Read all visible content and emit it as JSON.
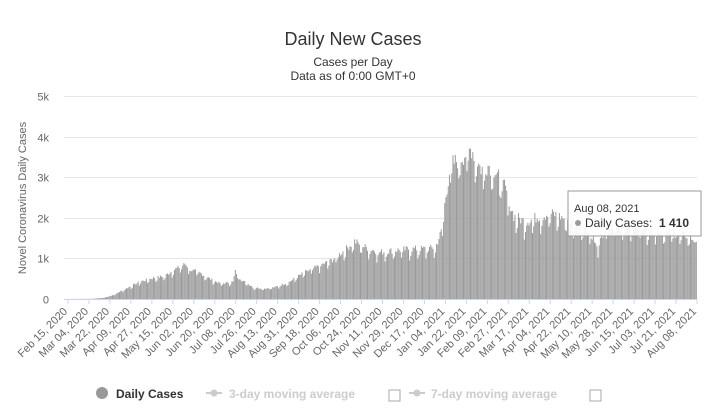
{
  "chart_data": {
    "type": "bar",
    "title": "Daily New Cases",
    "subtitle_line1": "Cases per Day",
    "subtitle_line2": "Data as of 0:00 GMT+0",
    "ylabel": "Novel Coronavirus Daily Cases",
    "ylim": [
      0,
      5000
    ],
    "yticks": [
      {
        "value": 0,
        "label": "0"
      },
      {
        "value": 1000,
        "label": "1k"
      },
      {
        "value": 2000,
        "label": "2k"
      },
      {
        "value": 3000,
        "label": "3k"
      },
      {
        "value": 4000,
        "label": "4k"
      },
      {
        "value": 5000,
        "label": "5k"
      }
    ],
    "xrange": [
      "2020-02-15",
      "2021-08-08"
    ],
    "xtick_labels": [
      "Feb 15, 2020",
      "Mar 04, 2020",
      "Mar 22, 2020",
      "Apr 09, 2020",
      "Apr 27, 2020",
      "May 15, 2020",
      "Jun 02, 2020",
      "Jun 20, 2020",
      "Jul 08, 2020",
      "Jul 26, 2020",
      "Aug 13, 2020",
      "Aug 31, 2020",
      "Sep 18, 2020",
      "Oct 06, 2020",
      "Oct 24, 2020",
      "Nov 11, 2020",
      "Nov 29, 2020",
      "Dec 17, 2020",
      "Jan 04, 2021",
      "Jan 22, 2021",
      "Feb 09, 2021",
      "Feb 27, 2021",
      "Mar 17, 2021",
      "Apr 04, 2021",
      "Apr 22, 2021",
      "May 10, 2021",
      "May 28, 2021",
      "Jun 15, 2021",
      "Jul 03, 2021",
      "Jul 21, 2021",
      "Aug 08, 2021"
    ],
    "series": [
      {
        "name": "Daily Cases",
        "color": "#999999",
        "anchors": [
          [
            "2020-02-15",
            0
          ],
          [
            "2020-03-10",
            5
          ],
          [
            "2020-03-20",
            30
          ],
          [
            "2020-03-28",
            100
          ],
          [
            "2020-04-05",
            220
          ],
          [
            "2020-04-20",
            430
          ],
          [
            "2020-05-01",
            520
          ],
          [
            "2020-05-10",
            560
          ],
          [
            "2020-05-20",
            740
          ],
          [
            "2020-05-28",
            860
          ],
          [
            "2020-06-02",
            720
          ],
          [
            "2020-06-10",
            640
          ],
          [
            "2020-06-20",
            470
          ],
          [
            "2020-06-28",
            380
          ],
          [
            "2020-07-08",
            420
          ],
          [
            "2020-07-10",
            680
          ],
          [
            "2020-07-15",
            480
          ],
          [
            "2020-07-26",
            280
          ],
          [
            "2020-08-05",
            260
          ],
          [
            "2020-08-13",
            290
          ],
          [
            "2020-08-25",
            420
          ],
          [
            "2020-09-05",
            620
          ],
          [
            "2020-09-18",
            800
          ],
          [
            "2020-10-01",
            960
          ],
          [
            "2020-10-10",
            1170
          ],
          [
            "2020-10-20",
            1420
          ],
          [
            "2020-10-28",
            1290
          ],
          [
            "2020-11-10",
            1150
          ],
          [
            "2020-11-20",
            1190
          ],
          [
            "2020-12-05",
            1230
          ],
          [
            "2020-12-17",
            1240
          ],
          [
            "2020-12-28",
            1260
          ],
          [
            "2021-01-02",
            1660
          ],
          [
            "2021-01-06",
            2550
          ],
          [
            "2021-01-10",
            3300
          ],
          [
            "2021-01-20",
            3500
          ],
          [
            "2021-01-28",
            3700
          ],
          [
            "2021-02-05",
            3200
          ],
          [
            "2021-02-12",
            3300
          ],
          [
            "2021-02-18",
            3100
          ],
          [
            "2021-02-25",
            2750
          ],
          [
            "2021-03-05",
            2050
          ],
          [
            "2021-03-15",
            1900
          ],
          [
            "2021-03-28",
            2050
          ],
          [
            "2021-04-08",
            2100
          ],
          [
            "2021-04-20",
            1950
          ],
          [
            "2021-05-01",
            1850
          ],
          [
            "2021-05-10",
            1650
          ],
          [
            "2021-05-15",
            1250
          ],
          [
            "2021-05-22",
            1700
          ],
          [
            "2021-06-01",
            1820
          ],
          [
            "2021-06-20",
            1780
          ],
          [
            "2021-07-05",
            1700
          ],
          [
            "2021-07-20",
            1620
          ],
          [
            "2021-08-01",
            1560
          ],
          [
            "2021-08-08",
            1410
          ]
        ]
      }
    ],
    "tooltip": {
      "date": "Aug 08, 2021",
      "label": "Daily Cases:",
      "value": "1 410"
    },
    "legend": [
      {
        "label": "Daily Cases",
        "color": "#999999",
        "active": true
      },
      {
        "label": "3-day moving average",
        "color": "#cccccc",
        "active": false
      },
      {
        "label": "7-day moving average",
        "color": "#cccccc",
        "active": false
      }
    ],
    "grid": true,
    "legend_position": "bottom"
  }
}
